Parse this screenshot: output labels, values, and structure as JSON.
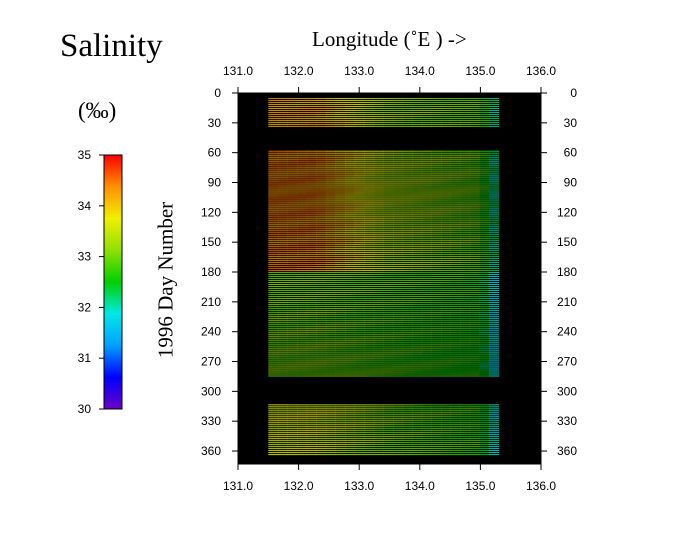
{
  "chart_data": {
    "type": "heatmap",
    "title": "Salinity",
    "colorbar": {
      "unit_label": "(‰)",
      "min": 30,
      "max": 35,
      "ticks": [
        "35",
        "34",
        "33",
        "32",
        "31",
        "30"
      ],
      "colormap": [
        "#6a00c8",
        "#0000ff",
        "#00a0ff",
        "#00e8e8",
        "#00d000",
        "#90e000",
        "#f0f000",
        "#ff9000",
        "#ff0000"
      ]
    },
    "xlabel": "Longitude  (˚E )  ->",
    "ylabel": "1996   Day  Number",
    "xlim": [
      131.0,
      136.0
    ],
    "ylim": [
      0,
      365
    ],
    "x_ticks": [
      "131.0",
      "132.0",
      "133.0",
      "134.0",
      "135.0",
      "136.0"
    ],
    "y_ticks": [
      "0",
      "30",
      "60",
      "90",
      "120",
      "150",
      "180",
      "210",
      "240",
      "270",
      "300",
      "330",
      "360"
    ],
    "valid_longitude_range": [
      131.5,
      135.3
    ],
    "data_gaps_days": [
      [
        0,
        5
      ],
      [
        35,
        58
      ],
      [
        285,
        313
      ]
    ],
    "salinity_field": [
      {
        "days": [
          5,
          35
        ],
        "west_132_3": 34.2,
        "central_133_134": 33.2,
        "east_135": 32.9
      },
      {
        "days": [
          58,
          180
        ],
        "west_132_3": 34.4,
        "central_133_134": 33.3,
        "east_135": 32.9
      },
      {
        "days": [
          180,
          285
        ],
        "west_132_3": 33.0,
        "central_133_134": 32.8,
        "east_135": 32.6
      },
      {
        "days": [
          313,
          365
        ],
        "west_132_3": 33.6,
        "central_133_134": 33.0,
        "east_135": 32.7
      }
    ]
  }
}
